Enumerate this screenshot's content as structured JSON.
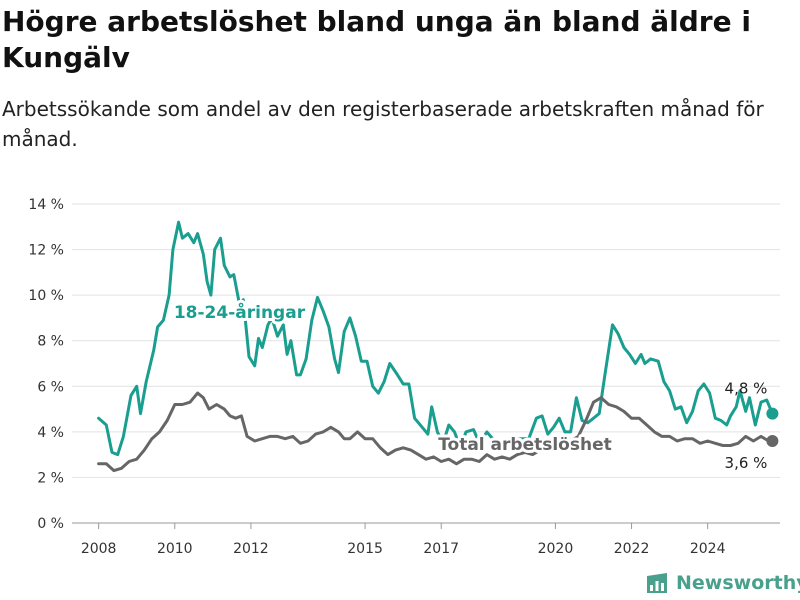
{
  "header": {
    "title": "Högre arbetslöshet bland unga än bland äldre i Kungälv",
    "subtitle": "Arbetssökande som andel av den registerbaserade arbetskraften månad för månad."
  },
  "brand": {
    "name": "Newsworthy",
    "icon": "newsworthy-bar-chart-icon",
    "color": "#48a08d"
  },
  "chart_data": {
    "type": "line",
    "title": "Högre arbetslöshet bland unga än bland äldre i Kungälv",
    "subtitle": "Arbetssökande som andel av den registerbaserade arbetskraften månad för månad.",
    "xlabel": "",
    "ylabel": "",
    "xlim": [
      2007.3,
      2025.9
    ],
    "ylim": [
      0,
      14
    ],
    "grid": {
      "horizontal": true,
      "vertical": false
    },
    "x_ticks": [
      {
        "value": 2008,
        "label": "2008"
      },
      {
        "value": 2010,
        "label": "2010"
      },
      {
        "value": 2012,
        "label": "2012"
      },
      {
        "value": 2015,
        "label": "2015"
      },
      {
        "value": 2017,
        "label": "2017"
      },
      {
        "value": 2020,
        "label": "2020"
      },
      {
        "value": 2022,
        "label": "2022"
      },
      {
        "value": 2024,
        "label": "2024"
      }
    ],
    "y_ticks": [
      {
        "value": 0,
        "label": "0 %"
      },
      {
        "value": 2,
        "label": "2 %"
      },
      {
        "value": 4,
        "label": "4 %"
      },
      {
        "value": 6,
        "label": "6 %"
      },
      {
        "value": 8,
        "label": "8 %"
      },
      {
        "value": 10,
        "label": "10 %"
      },
      {
        "value": 12,
        "label": "12 %"
      },
      {
        "value": 14,
        "label": "14 %"
      }
    ],
    "series": [
      {
        "name": "18-24-åringar",
        "color": "#1a9e8f",
        "end_label": "4,8 %",
        "label_anchor": [
          2011.7,
          9.0
        ],
        "points": [
          [
            2008.0,
            4.6
          ],
          [
            2008.2,
            4.3
          ],
          [
            2008.35,
            3.1
          ],
          [
            2008.5,
            3.0
          ],
          [
            2008.65,
            3.8
          ],
          [
            2008.85,
            5.6
          ],
          [
            2009.0,
            6.0
          ],
          [
            2009.1,
            4.8
          ],
          [
            2009.25,
            6.2
          ],
          [
            2009.45,
            7.6
          ],
          [
            2009.55,
            8.6
          ],
          [
            2009.7,
            8.9
          ],
          [
            2009.85,
            10.0
          ],
          [
            2009.95,
            12.0
          ],
          [
            2010.1,
            13.2
          ],
          [
            2010.2,
            12.5
          ],
          [
            2010.35,
            12.7
          ],
          [
            2010.5,
            12.3
          ],
          [
            2010.6,
            12.7
          ],
          [
            2010.75,
            11.8
          ],
          [
            2010.85,
            10.6
          ],
          [
            2010.95,
            10.0
          ],
          [
            2011.05,
            12.0
          ],
          [
            2011.2,
            12.5
          ],
          [
            2011.3,
            11.3
          ],
          [
            2011.45,
            10.8
          ],
          [
            2011.55,
            10.9
          ],
          [
            2011.7,
            9.6
          ],
          [
            2011.8,
            9.8
          ],
          [
            2011.95,
            7.3
          ],
          [
            2012.1,
            6.9
          ],
          [
            2012.2,
            8.1
          ],
          [
            2012.3,
            7.7
          ],
          [
            2012.45,
            8.7
          ],
          [
            2012.55,
            9.0
          ],
          [
            2012.7,
            8.2
          ],
          [
            2012.85,
            8.7
          ],
          [
            2012.95,
            7.4
          ],
          [
            2013.05,
            8.0
          ],
          [
            2013.2,
            6.5
          ],
          [
            2013.3,
            6.5
          ],
          [
            2013.45,
            7.2
          ],
          [
            2013.6,
            8.9
          ],
          [
            2013.75,
            9.9
          ],
          [
            2013.9,
            9.3
          ],
          [
            2014.05,
            8.6
          ],
          [
            2014.2,
            7.2
          ],
          [
            2014.3,
            6.6
          ],
          [
            2014.45,
            8.4
          ],
          [
            2014.6,
            9.0
          ],
          [
            2014.75,
            8.2
          ],
          [
            2014.9,
            7.1
          ],
          [
            2015.05,
            7.1
          ],
          [
            2015.2,
            6.0
          ],
          [
            2015.35,
            5.7
          ],
          [
            2015.5,
            6.2
          ],
          [
            2015.65,
            7.0
          ],
          [
            2015.85,
            6.5
          ],
          [
            2016.0,
            6.1
          ],
          [
            2016.15,
            6.1
          ],
          [
            2016.3,
            4.6
          ],
          [
            2016.5,
            4.2
          ],
          [
            2016.65,
            3.9
          ],
          [
            2016.75,
            5.1
          ],
          [
            2016.9,
            4.0
          ],
          [
            2017.05,
            3.5
          ],
          [
            2017.2,
            4.3
          ],
          [
            2017.35,
            4.0
          ],
          [
            2017.5,
            3.3
          ],
          [
            2017.65,
            4.0
          ],
          [
            2017.85,
            4.1
          ],
          [
            2018.0,
            3.5
          ],
          [
            2018.2,
            4.0
          ],
          [
            2018.4,
            3.6
          ],
          [
            2018.55,
            3.5
          ],
          [
            2018.75,
            3.2
          ],
          [
            2018.9,
            3.7
          ],
          [
            2019.1,
            3.7
          ],
          [
            2019.3,
            3.7
          ],
          [
            2019.5,
            4.6
          ],
          [
            2019.65,
            4.7
          ],
          [
            2019.8,
            3.9
          ],
          [
            2019.95,
            4.2
          ],
          [
            2020.1,
            4.6
          ],
          [
            2020.25,
            4.0
          ],
          [
            2020.4,
            4.0
          ],
          [
            2020.55,
            5.5
          ],
          [
            2020.7,
            4.5
          ],
          [
            2020.85,
            4.4
          ],
          [
            2021.0,
            4.6
          ],
          [
            2021.15,
            4.8
          ],
          [
            2021.3,
            6.5
          ],
          [
            2021.5,
            8.7
          ],
          [
            2021.65,
            8.3
          ],
          [
            2021.8,
            7.7
          ],
          [
            2021.95,
            7.4
          ],
          [
            2022.1,
            7.0
          ],
          [
            2022.25,
            7.4
          ],
          [
            2022.35,
            7.0
          ],
          [
            2022.5,
            7.2
          ],
          [
            2022.7,
            7.1
          ],
          [
            2022.85,
            6.2
          ],
          [
            2023.0,
            5.8
          ],
          [
            2023.15,
            5.0
          ],
          [
            2023.3,
            5.1
          ],
          [
            2023.45,
            4.4
          ],
          [
            2023.6,
            4.9
          ],
          [
            2023.75,
            5.8
          ],
          [
            2023.9,
            6.1
          ],
          [
            2024.05,
            5.7
          ],
          [
            2024.2,
            4.6
          ],
          [
            2024.35,
            4.5
          ],
          [
            2024.5,
            4.3
          ],
          [
            2024.6,
            4.7
          ],
          [
            2024.75,
            5.1
          ],
          [
            2024.85,
            5.8
          ],
          [
            2025.0,
            4.9
          ],
          [
            2025.1,
            5.5
          ],
          [
            2025.25,
            4.3
          ],
          [
            2025.4,
            5.3
          ],
          [
            2025.55,
            5.4
          ],
          [
            2025.7,
            4.8
          ]
        ]
      },
      {
        "name": "Total arbetslöshet",
        "color": "#666666",
        "end_label": "3,6 %",
        "label_anchor": [
          2019.2,
          3.2
        ],
        "points": [
          [
            2008.0,
            2.6
          ],
          [
            2008.2,
            2.6
          ],
          [
            2008.4,
            2.3
          ],
          [
            2008.6,
            2.4
          ],
          [
            2008.8,
            2.7
          ],
          [
            2009.0,
            2.8
          ],
          [
            2009.2,
            3.2
          ],
          [
            2009.4,
            3.7
          ],
          [
            2009.6,
            4.0
          ],
          [
            2009.8,
            4.5
          ],
          [
            2010.0,
            5.2
          ],
          [
            2010.2,
            5.2
          ],
          [
            2010.4,
            5.3
          ],
          [
            2010.6,
            5.7
          ],
          [
            2010.75,
            5.5
          ],
          [
            2010.9,
            5.0
          ],
          [
            2011.1,
            5.2
          ],
          [
            2011.3,
            5.0
          ],
          [
            2011.45,
            4.7
          ],
          [
            2011.6,
            4.6
          ],
          [
            2011.75,
            4.7
          ],
          [
            2011.9,
            3.8
          ],
          [
            2012.1,
            3.6
          ],
          [
            2012.3,
            3.7
          ],
          [
            2012.5,
            3.8
          ],
          [
            2012.7,
            3.8
          ],
          [
            2012.9,
            3.7
          ],
          [
            2013.1,
            3.8
          ],
          [
            2013.3,
            3.5
          ],
          [
            2013.5,
            3.6
          ],
          [
            2013.7,
            3.9
          ],
          [
            2013.9,
            4.0
          ],
          [
            2014.1,
            4.2
          ],
          [
            2014.3,
            4.0
          ],
          [
            2014.45,
            3.7
          ],
          [
            2014.6,
            3.7
          ],
          [
            2014.8,
            4.0
          ],
          [
            2015.0,
            3.7
          ],
          [
            2015.2,
            3.7
          ],
          [
            2015.4,
            3.3
          ],
          [
            2015.6,
            3.0
          ],
          [
            2015.8,
            3.2
          ],
          [
            2016.0,
            3.3
          ],
          [
            2016.2,
            3.2
          ],
          [
            2016.4,
            3.0
          ],
          [
            2016.6,
            2.8
          ],
          [
            2016.8,
            2.9
          ],
          [
            2017.0,
            2.7
          ],
          [
            2017.2,
            2.8
          ],
          [
            2017.4,
            2.6
          ],
          [
            2017.6,
            2.8
          ],
          [
            2017.8,
            2.8
          ],
          [
            2018.0,
            2.7
          ],
          [
            2018.2,
            3.0
          ],
          [
            2018.4,
            2.8
          ],
          [
            2018.6,
            2.9
          ],
          [
            2018.8,
            2.8
          ],
          [
            2019.0,
            3.0
          ],
          [
            2019.2,
            3.1
          ],
          [
            2019.4,
            3.0
          ],
          [
            2019.6,
            3.2
          ],
          [
            2019.8,
            3.2
          ],
          [
            2020.0,
            3.3
          ],
          [
            2020.2,
            3.5
          ],
          [
            2020.4,
            3.6
          ],
          [
            2020.6,
            3.8
          ],
          [
            2020.8,
            4.5
          ],
          [
            2021.0,
            5.3
          ],
          [
            2021.2,
            5.5
          ],
          [
            2021.4,
            5.2
          ],
          [
            2021.6,
            5.1
          ],
          [
            2021.8,
            4.9
          ],
          [
            2022.0,
            4.6
          ],
          [
            2022.2,
            4.6
          ],
          [
            2022.4,
            4.3
          ],
          [
            2022.6,
            4.0
          ],
          [
            2022.8,
            3.8
          ],
          [
            2023.0,
            3.8
          ],
          [
            2023.2,
            3.6
          ],
          [
            2023.4,
            3.7
          ],
          [
            2023.6,
            3.7
          ],
          [
            2023.8,
            3.5
          ],
          [
            2024.0,
            3.6
          ],
          [
            2024.2,
            3.5
          ],
          [
            2024.4,
            3.4
          ],
          [
            2024.6,
            3.4
          ],
          [
            2024.8,
            3.5
          ],
          [
            2025.0,
            3.8
          ],
          [
            2025.2,
            3.6
          ],
          [
            2025.4,
            3.8
          ],
          [
            2025.6,
            3.6
          ],
          [
            2025.7,
            3.6
          ]
        ]
      }
    ]
  }
}
